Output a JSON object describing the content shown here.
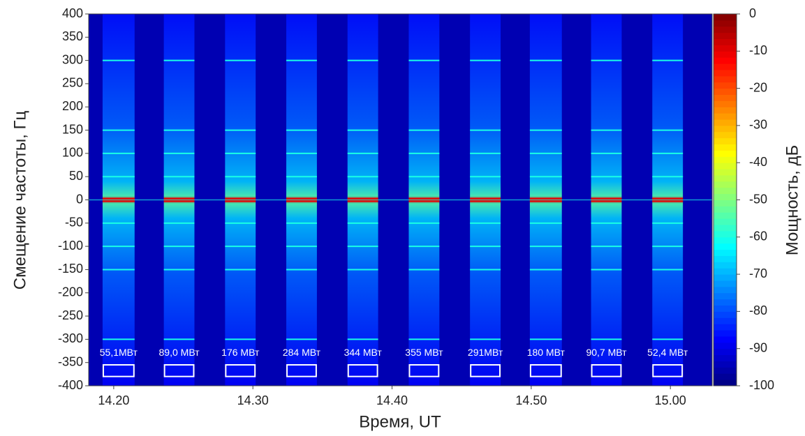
{
  "chart_data": {
    "type": "spectrogram",
    "xlabel": "Время, UT",
    "ylabel": "Смещение частоты, Гц",
    "colorbar_label": "Мощность, дБ",
    "xlim": [
      858.2,
      903.0
    ],
    "xticks": [
      {
        "value": 860,
        "label": "14.20"
      },
      {
        "value": 870,
        "label": "14.30"
      },
      {
        "value": 880,
        "label": "14.40"
      },
      {
        "value": 890,
        "label": "14.50"
      },
      {
        "value": 900,
        "label": "15.00"
      }
    ],
    "ylim": [
      -400,
      400
    ],
    "yticks": [
      -400,
      -350,
      -300,
      -250,
      -200,
      -150,
      -100,
      -50,
      0,
      50,
      100,
      150,
      200,
      250,
      300,
      350,
      400
    ],
    "clim": [
      -100,
      0
    ],
    "cticks": [
      -100,
      -90,
      -80,
      -70,
      -60,
      -50,
      -40,
      -30,
      -20,
      -10,
      0
    ],
    "colormap": [
      "#00007f",
      "#0000ff",
      "#007fff",
      "#00ffff",
      "#7fff7f",
      "#ffff00",
      "#ff7f00",
      "#ff0000",
      "#7f0000"
    ],
    "spectral_lines": [
      -300,
      -150,
      -100,
      -50,
      0,
      50,
      100,
      150,
      300
    ],
    "segments": [
      {
        "label": "55,1МВт",
        "start": 859.2,
        "end": 861.5
      },
      {
        "label": "89,0 МВт",
        "start": 863.6,
        "end": 865.8
      },
      {
        "label": "176 МВт",
        "start": 868.0,
        "end": 870.2
      },
      {
        "label": "284 МВт",
        "start": 872.4,
        "end": 874.6
      },
      {
        "label": "344 МВт",
        "start": 876.8,
        "end": 879.0
      },
      {
        "label": "355 МВт",
        "start": 881.2,
        "end": 883.4
      },
      {
        "label": "291МВт",
        "start": 885.6,
        "end": 887.8
      },
      {
        "label": "180 МВт",
        "start": 889.9,
        "end": 892.2
      },
      {
        "label": "90,7 МВт",
        "start": 894.3,
        "end": 896.5
      },
      {
        "label": "52,4 МВт",
        "start": 898.7,
        "end": 900.9
      }
    ]
  }
}
